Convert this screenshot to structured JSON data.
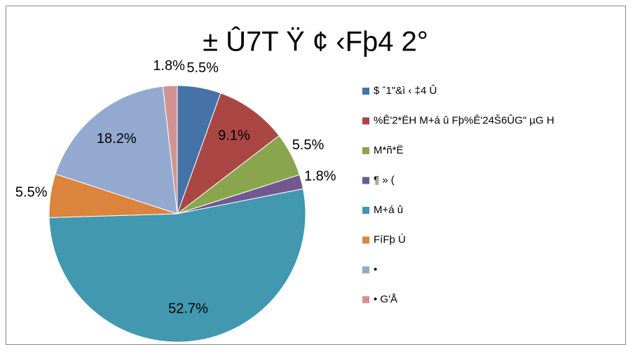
{
  "chart_data": {
    "type": "pie",
    "title": "± Û7T Ÿ ¢ ‹Fþ4 2°",
    "categories": [
      "$ ˆ1\"&ì ‹ ‡4  Û",
      "%Ê'2*ËH  M+á û  Fþ%Ê'24Š6ÛG\" µG H",
      "M*ñ*Ë",
      "¶ » (",
      "M+á û",
      "FíFþ Ú",
      "•",
      "• G'Å"
    ],
    "values": [
      5.5,
      9.1,
      5.5,
      1.8,
      52.7,
      5.5,
      18.2,
      1.8
    ],
    "value_labels": [
      "5.5%",
      "9.1%",
      "5.5%",
      "1.8%",
      "52.7%",
      "5.5%",
      "18.2%",
      "1.8%"
    ],
    "colors": [
      "#4572a7",
      "#aa4643",
      "#89a54e",
      "#71588f",
      "#4198af",
      "#db843d",
      "#93a9cf",
      "#d19392"
    ],
    "legend": "right"
  }
}
